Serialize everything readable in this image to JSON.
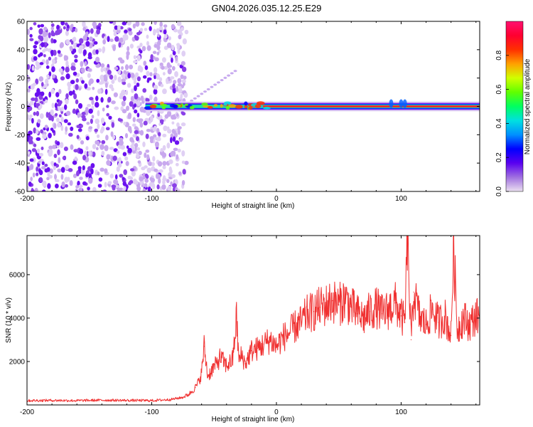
{
  "title": "GN04.2026.035.12.25.E29",
  "chart_data": [
    {
      "type": "heatmap",
      "name": "spectrogram",
      "xlabel": "Height of straight line (km)",
      "ylabel": "Frequency (Hz)",
      "xlim": [
        -200,
        163
      ],
      "ylim": [
        -60,
        60
      ],
      "xticks": [
        -200,
        -100,
        0,
        100
      ],
      "yticks": [
        -60,
        -40,
        -20,
        0,
        20,
        40,
        60
      ],
      "colorbar": {
        "label": "Normalized spectral amplitude",
        "range": [
          0,
          1
        ],
        "ticks": [
          0.0,
          0.2,
          0.4,
          0.6,
          0.8
        ],
        "colors": [
          "#ebe0f0",
          "#a070e0",
          "#5a00f0",
          "#0000ff",
          "#0090ff",
          "#00e0e0",
          "#00ff60",
          "#60ff00",
          "#d0ff00",
          "#ffa000",
          "#ff3000",
          "#ff0030",
          "#ff1070"
        ]
      },
      "features": {
        "noise_region_x": [
          -200,
          -72
        ],
        "signal_track_x": [
          -105,
          163
        ],
        "signal_frequency_hz": 0,
        "faint_branch": {
          "x": [
            -68,
            -33
          ],
          "y": [
            4,
            25
          ]
        }
      }
    },
    {
      "type": "line",
      "name": "snr",
      "xlabel": "Height of straight line (km)",
      "ylabel": "SNR (10 * v/v)",
      "xlim": [
        -200,
        163
      ],
      "ylim": [
        0,
        7800
      ],
      "xticks": [
        -200,
        -100,
        0,
        100
      ],
      "yticks": [
        2000,
        4000,
        6000
      ],
      "series": [
        {
          "name": "SNR",
          "color": "#f03030",
          "x": [
            -200,
            -180,
            -160,
            -140,
            -120,
            -100,
            -85,
            -75,
            -70,
            -65,
            -62,
            -60,
            -58,
            -55,
            -52,
            -48,
            -45,
            -40,
            -35,
            -32,
            -30,
            -28,
            -25,
            -20,
            -15,
            -10,
            -5,
            0,
            5,
            10,
            15,
            20,
            25,
            30,
            35,
            40,
            45,
            50,
            55,
            60,
            65,
            70,
            75,
            80,
            85,
            90,
            95,
            100,
            103,
            105,
            108,
            110,
            115,
            120,
            125,
            130,
            135,
            140,
            142,
            145,
            150,
            155,
            160,
            163
          ],
          "values": [
            200,
            210,
            200,
            220,
            210,
            200,
            250,
            350,
            500,
            800,
            1100,
            1500,
            2700,
            1300,
            1600,
            1900,
            2200,
            1800,
            2100,
            4000,
            2000,
            2300,
            1900,
            2500,
            2600,
            2800,
            3000,
            2700,
            3100,
            3300,
            3600,
            3800,
            4200,
            4300,
            4500,
            4600,
            4800,
            4600,
            4900,
            4500,
            4200,
            4000,
            4300,
            4500,
            4200,
            4400,
            4700,
            4100,
            3800,
            7700,
            3000,
            5200,
            4000,
            3700,
            4400,
            3800,
            4100,
            3200,
            7400,
            3500,
            4000,
            3700,
            4100,
            4000
          ]
        }
      ]
    }
  ]
}
